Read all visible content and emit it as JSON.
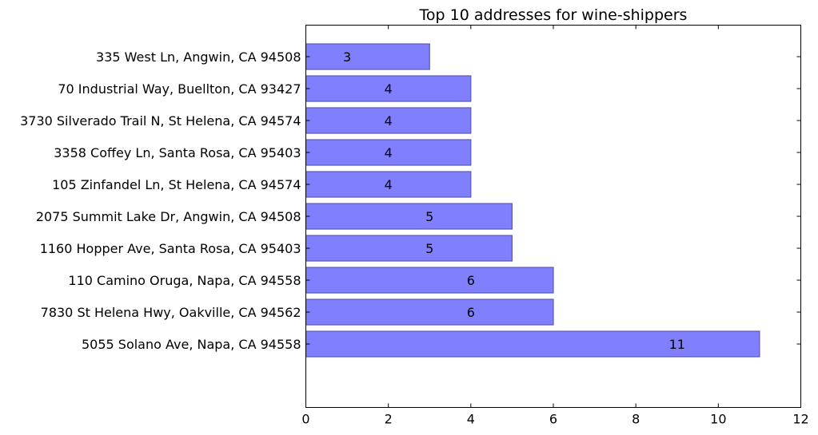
{
  "chart_data": {
    "type": "bar",
    "orientation": "horizontal",
    "title": "Top 10 addresses for wine-shippers",
    "xlabel": "",
    "ylabel": "",
    "categories": [
      "335 West Ln, Angwin, CA 94508",
      "70 Industrial Way, Buellton, CA 93427",
      "3730 Silverado Trail N, St Helena, CA 94574",
      "3358 Coffey Ln, Santa Rosa, CA 95403",
      "105 Zinfandel Ln, St Helena, CA 94574",
      "2075 Summit Lake Dr, Angwin, CA 94508",
      "1160 Hopper Ave, Santa Rosa, CA 95403",
      "110 Camino Oruga, Napa, CA 94558",
      "7830 St Helena Hwy, Oakville, CA 94562",
      "5055 Solano Ave, Napa, CA 94558"
    ],
    "values": [
      3,
      4,
      4,
      4,
      4,
      5,
      5,
      6,
      6,
      11
    ],
    "value_labels": [
      "3",
      "4",
      "4",
      "4",
      "4",
      "5",
      "5",
      "6",
      "6",
      "11"
    ],
    "xlim": [
      0,
      12
    ],
    "xticks": [
      0,
      2,
      4,
      6,
      8,
      10,
      12
    ],
    "xtick_labels": [
      "0",
      "2",
      "4",
      "6",
      "8",
      "10",
      "12"
    ],
    "grid": false,
    "bar_color": "#8080ff",
    "bar_edge_color": "#5a5ab0"
  }
}
